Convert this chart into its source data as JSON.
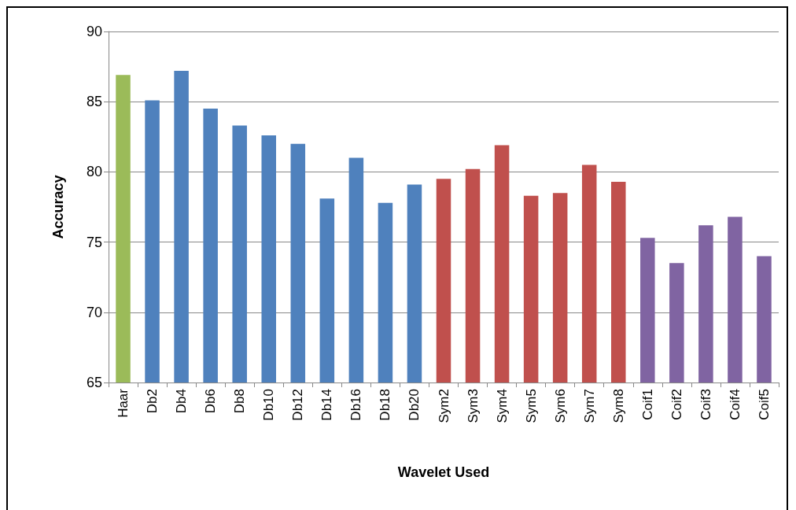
{
  "chart_data": {
    "type": "bar",
    "xlabel": "Wavelet Used",
    "ylabel": "Accuracy",
    "categories": [
      "Haar",
      "Db2",
      "Db4",
      "Db6",
      "Db8",
      "Db10",
      "Db12",
      "Db14",
      "Db16",
      "Db18",
      "Db20",
      "Sym2",
      "Sym3",
      "Sym4",
      "Sym5",
      "Sym6",
      "Sym7",
      "Sym8",
      "Coif1",
      "Coif2",
      "Coif3",
      "Coif4",
      "Coif5"
    ],
    "values": [
      86.9,
      85.1,
      87.2,
      84.5,
      83.3,
      82.6,
      82.0,
      78.1,
      81.0,
      77.8,
      79.1,
      79.5,
      80.2,
      81.9,
      78.3,
      78.5,
      80.5,
      79.3,
      75.3,
      73.5,
      76.2,
      76.8,
      74.0
    ],
    "colors": [
      "#9bbb59",
      "#4f81bd",
      "#4f81bd",
      "#4f81bd",
      "#4f81bd",
      "#4f81bd",
      "#4f81bd",
      "#4f81bd",
      "#4f81bd",
      "#4f81bd",
      "#4f81bd",
      "#c0504d",
      "#c0504d",
      "#c0504d",
      "#c0504d",
      "#c0504d",
      "#c0504d",
      "#c0504d",
      "#8064a2",
      "#8064a2",
      "#8064a2",
      "#8064a2",
      "#8064a2"
    ],
    "ylim": [
      65,
      90
    ],
    "yticks": [
      65,
      70,
      75,
      80,
      85,
      90
    ],
    "grid": "y"
  }
}
